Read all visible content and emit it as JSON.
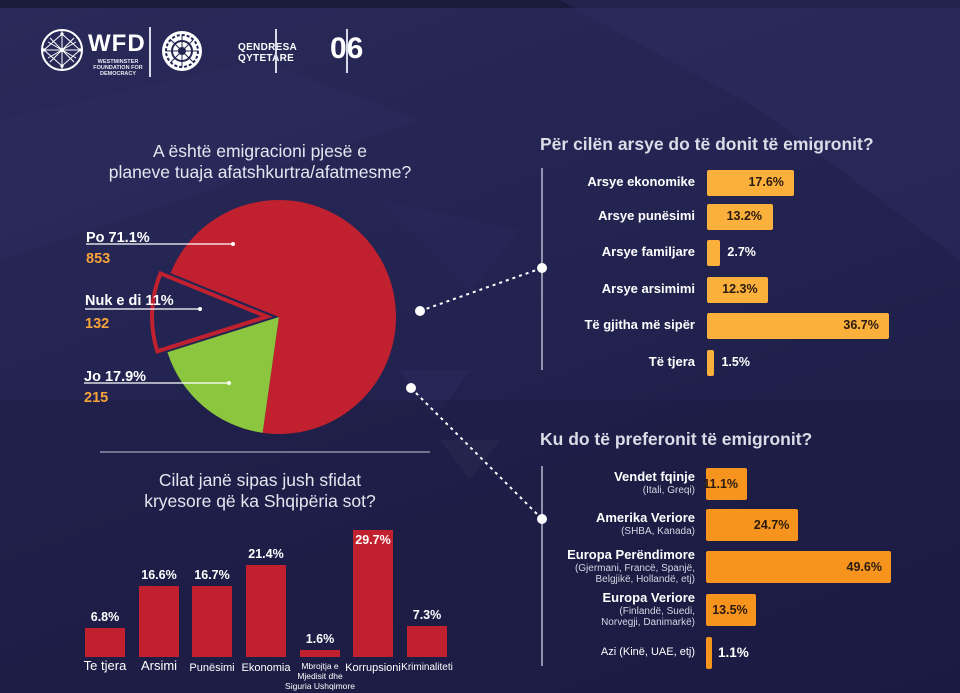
{
  "header": {
    "org_name": "WFD",
    "org_full_name_lines": [
      "WESTMINSTER",
      "FOUNDATION FOR",
      "DEMOCRACY"
    ],
    "partner_name_lines": [
      "QENDRESA",
      "QYTETARE"
    ],
    "page_number": "06"
  },
  "colors": {
    "background": "#242452",
    "pie_yes": "#c1202f",
    "pie_no": "#8cc63f",
    "pie_dontknow_outline": "#c1202f",
    "reasons_bar": "#fbb03b",
    "destinations_bar": "#f7941d",
    "challenges_bar": "#c1202f",
    "count_text": "#f6a33a"
  },
  "chart_data": [
    {
      "type": "pie",
      "title": "A është emigracioni pjesë e planeve tuaja afatshkurtra/afatmesme?",
      "title_lines": [
        "A është emigracioni pjesë e",
        "planeve tuaja afatshkurtra/afatmesme?"
      ],
      "slices": [
        {
          "label": "Po 71.1%",
          "name": "Po",
          "percent": 71.1,
          "count": 853,
          "count_text": "853",
          "color": "#c1202f",
          "exploded": false
        },
        {
          "label": "Nuk e di 11%",
          "name": "Nuk e di",
          "percent": 11,
          "count": 132,
          "count_text": "132",
          "color": "none",
          "exploded": true
        },
        {
          "label": "Jo 17.9%",
          "name": "Jo",
          "percent": 17.9,
          "count": 215,
          "count_text": "215",
          "color": "#8cc63f",
          "exploded": false
        }
      ]
    },
    {
      "type": "bar",
      "orientation": "horizontal",
      "title": "Për cilën arsye do të donit të emigronit?",
      "categories": [
        "Arsye ekonomike",
        "Arsye punësimi",
        "Arsye familjare",
        "Arsye arsimimi",
        "Të gjitha më sipër",
        "Të tjera"
      ],
      "values": [
        17.6,
        13.2,
        2.7,
        12.3,
        36.7,
        1.5
      ],
      "value_labels": [
        "17.6%",
        "13.2%",
        "2.7%",
        "12.3%",
        "36.7%",
        "1.5%"
      ],
      "unit": "%"
    },
    {
      "type": "bar",
      "orientation": "horizontal",
      "title": "Ku do të preferonit të emigronit?",
      "categories": [
        "Vendet fqinje",
        "Amerika Veriore",
        "Europa Perëndimore",
        "Europa Veriore",
        "Azi (Kinë, UAE, etj)"
      ],
      "subtitles": [
        [
          "(Itali, Greqi)"
        ],
        [
          "(SHBA, Kanada)"
        ],
        [
          "(Gjermani, Francë, Spanjë,",
          "Belgjikë, Hollandë, etj)"
        ],
        [
          "(Finlandë, Suedi,",
          "Norvegji, Danimarkë)"
        ],
        []
      ],
      "values": [
        11.1,
        24.7,
        49.6,
        13.5,
        1.1
      ],
      "value_labels": [
        "11.1%",
        "24.7%",
        "49.6%",
        "13.5%",
        "1.1%"
      ],
      "unit": "%"
    },
    {
      "type": "bar",
      "orientation": "vertical",
      "title": "Cilat janë sipas jush sfidat kryesore që ka Shqipëria sot?",
      "title_lines": [
        "Cilat janë sipas jush sfidat",
        "kryesore që ka Shqipëria sot?"
      ],
      "categories": [
        "Te tjera",
        "Arsimi",
        "Punësimi",
        "Ekonomia",
        "Mbrojtja e Mjedisit dhe Siguria Ushqimore",
        "Korrupsioni",
        "Kriminaliteti"
      ],
      "category_lines": [
        [
          "Te tjera"
        ],
        [
          "Arsimi"
        ],
        [
          "Punësimi"
        ],
        [
          "Ekonomia"
        ],
        [
          "Mbrojtja e",
          "Mjedisit dhe",
          "Siguria Ushqimore"
        ],
        [
          "Korrupsioni"
        ],
        [
          "Kriminaliteti"
        ]
      ],
      "values": [
        6.8,
        16.6,
        16.7,
        21.4,
        1.6,
        29.7,
        7.3
      ],
      "value_labels": [
        "6.8%",
        "16.6%",
        "16.7%",
        "21.4%",
        "1.6%",
        "29.7%",
        "7.3%"
      ],
      "unit": "%"
    }
  ]
}
